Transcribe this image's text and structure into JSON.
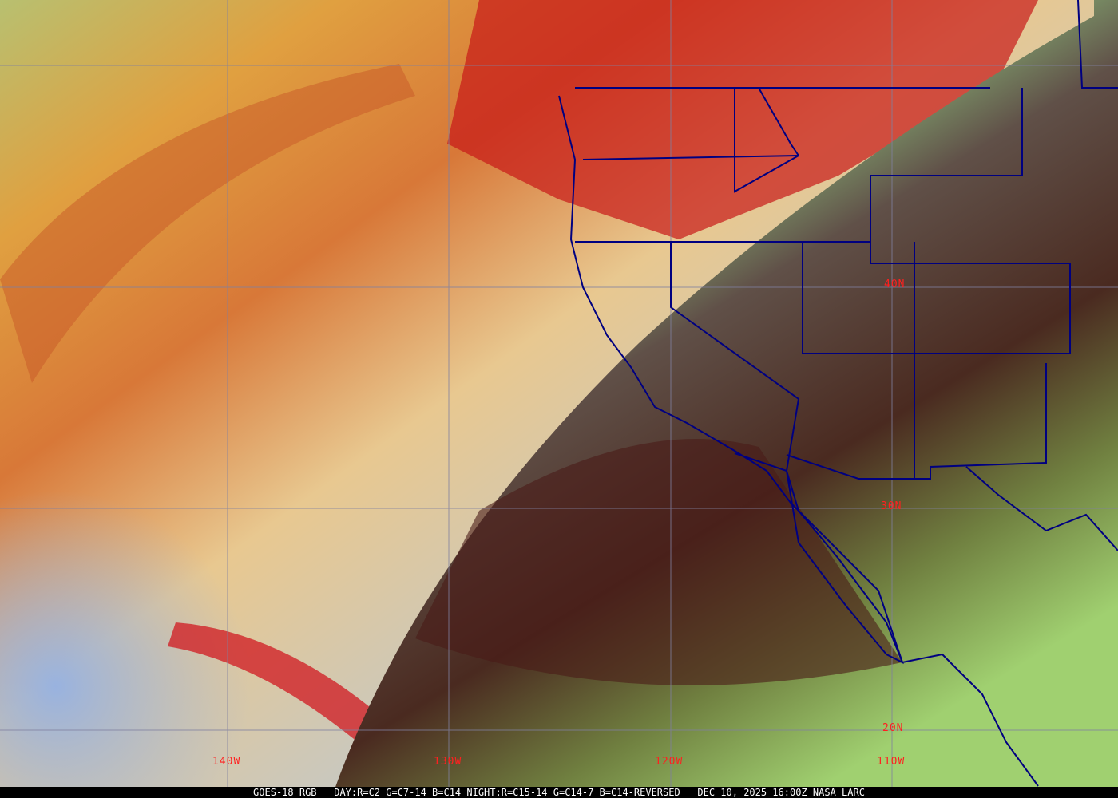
{
  "map": {
    "satellite_product": "GOES-18 RGB",
    "recipe": "DAY:R=C2 G=C7-14 B=C14 NIGHT:R=C15-14 G=C14-7 B=C14-REVERSED",
    "datetime": "DEC 10, 2025 16:00Z",
    "credit": "NASA LARC",
    "latitude_labels": [
      "40N",
      "30N",
      "20N"
    ],
    "longitude_labels": [
      "140W",
      "130W",
      "120W",
      "110W"
    ],
    "colors": {
      "grid": "#8080a0",
      "labels": "#ff2020",
      "borders": "#000080",
      "footer_text": "#ffffff"
    }
  }
}
